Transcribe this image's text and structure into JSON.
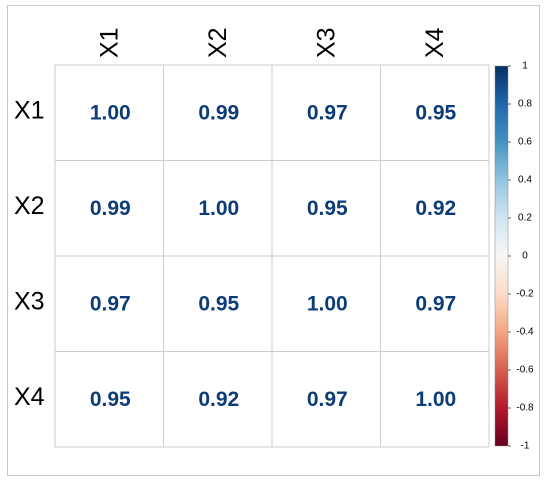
{
  "chart_data": {
    "type": "heatmap",
    "title": "",
    "rows": [
      "X1",
      "X2",
      "X3",
      "X4"
    ],
    "columns": [
      "X1",
      "X2",
      "X3",
      "X4"
    ],
    "values": [
      [
        1.0,
        0.99,
        0.97,
        0.95
      ],
      [
        0.99,
        1.0,
        0.95,
        0.92
      ],
      [
        0.97,
        0.95,
        1.0,
        0.97
      ],
      [
        0.95,
        0.92,
        0.97,
        1.0
      ]
    ],
    "value_labels": [
      [
        "1.00",
        "0.99",
        "0.97",
        "0.95"
      ],
      [
        "0.99",
        "1.00",
        "0.95",
        "0.92"
      ],
      [
        "0.97",
        "0.95",
        "1.00",
        "0.97"
      ],
      [
        "0.95",
        "0.92",
        "0.97",
        "1.00"
      ]
    ],
    "colorbar": {
      "range": [
        -1,
        1
      ],
      "ticks": [
        "1",
        "0.8",
        "0.6",
        "0.4",
        "0.2",
        "0",
        "-0.2",
        "-0.4",
        "-0.6",
        "-0.8",
        "-1"
      ],
      "colors": {
        "positive": "#053061",
        "mid": "#f7f7f7",
        "negative": "#67001f"
      }
    },
    "value_text_color": "#0d3c78",
    "grid_color": "#cccccc",
    "cell_fill": "#ffffff"
  }
}
